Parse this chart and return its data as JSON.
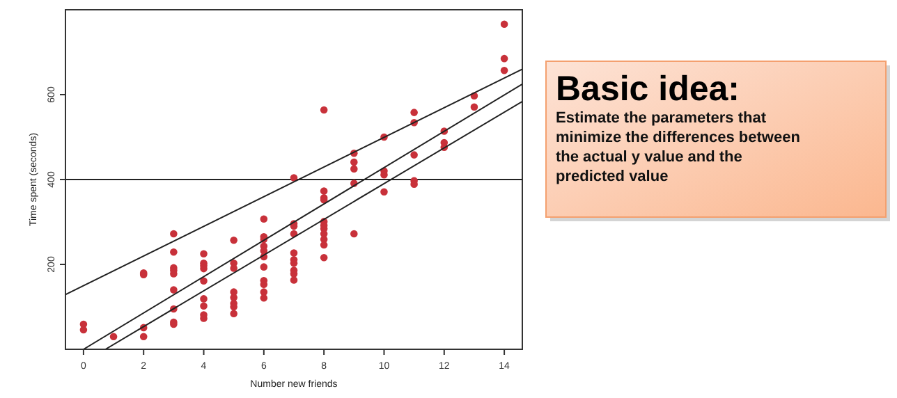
{
  "chart_data": {
    "type": "scatter",
    "xlabel": "Number new friends",
    "ylabel": "Time spent (seconds)",
    "xlim": [
      -0.6,
      14.6
    ],
    "ylim": [
      0,
      800
    ],
    "xticks": [
      0,
      2,
      4,
      6,
      8,
      10,
      12,
      14
    ],
    "yticks": [
      200,
      400,
      600
    ],
    "grid": false,
    "marker": "circle",
    "series": [
      {
        "color": "#c8313a",
        "x": [
          0,
          0,
          1,
          2,
          2,
          2,
          2,
          3,
          3,
          3,
          3,
          3,
          3,
          3,
          3,
          3,
          4,
          4,
          4,
          4,
          4,
          4,
          4,
          4,
          4,
          5,
          5,
          5,
          5,
          5,
          5,
          5,
          5,
          6,
          6,
          6,
          6,
          6,
          6,
          6,
          6,
          6,
          6,
          6,
          7,
          7,
          7,
          7,
          7,
          7,
          7,
          7,
          7,
          7,
          8,
          8,
          8,
          8,
          8,
          8,
          8,
          8,
          8,
          8,
          8,
          9,
          9,
          9,
          9,
          9,
          10,
          10,
          10,
          10,
          11,
          11,
          11,
          11,
          11,
          12,
          12,
          12,
          13,
          13,
          14,
          14,
          14
        ],
        "values": [
          59,
          46,
          30,
          180,
          176,
          51,
          30,
          272,
          229,
          192,
          186,
          178,
          140,
          95,
          64,
          59,
          225,
          203,
          197,
          190,
          161,
          119,
          102,
          81,
          73,
          257,
          203,
          191,
          135,
          122,
          108,
          100,
          84,
          307,
          265,
          259,
          243,
          232,
          218,
          194,
          162,
          153,
          135,
          121,
          404,
          296,
          290,
          272,
          227,
          211,
          203,
          186,
          178,
          163,
          564,
          373,
          357,
          352,
          301,
          292,
          284,
          272,
          259,
          246,
          216,
          462,
          441,
          425,
          391,
          272,
          500,
          420,
          411,
          371,
          558,
          534,
          458,
          397,
          389,
          514,
          487,
          476,
          597,
          571,
          766,
          685,
          657
        ]
      },
      {
        "type": "line",
        "color": "#222222",
        "x": [
          -0.6,
          14.6
        ],
        "values": [
          129,
          660
        ],
        "marker": "none"
      },
      {
        "type": "line",
        "color": "#222222",
        "x": [
          0,
          14.6
        ],
        "values": [
          0,
          625
        ],
        "marker": "none"
      },
      {
        "type": "line",
        "color": "#222222",
        "x": [
          0.73,
          14.6
        ],
        "values": [
          0,
          584
        ],
        "marker": "none"
      }
    ],
    "ref_lines": [
      {
        "axis": "y",
        "value": 400,
        "color": "#222222"
      }
    ],
    "annotations": [
      "Basic idea:",
      "Estimate the parameters that minimize the differences between the actual y value and the predicted value"
    ]
  }
}
